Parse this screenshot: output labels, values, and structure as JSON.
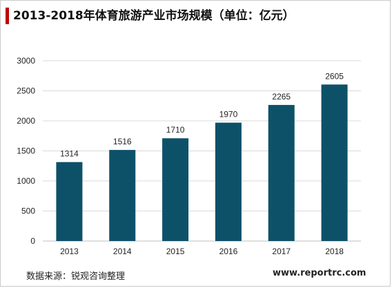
{
  "title": "2013-2018年体育旅游产业市场规模（单位：亿元）",
  "source": "数据来源：锐观咨询整理",
  "website": "www.reportrc.com",
  "colors": {
    "bar": "#0d5169",
    "accent": "#c00000",
    "grid": "#d9d9d9"
  },
  "chart_data": {
    "type": "bar",
    "title": "2013-2018年体育旅游产业市场规模（单位：亿元）",
    "categories": [
      "2013",
      "2014",
      "2015",
      "2016",
      "2017",
      "2018"
    ],
    "values": [
      1314,
      1516,
      1710,
      1970,
      2265,
      2605
    ],
    "data_labels": [
      "1314",
      "1516",
      "1710",
      "1970",
      "2265",
      "2605"
    ],
    "yticks": [
      0,
      500,
      1000,
      1500,
      2000,
      2500,
      3000
    ],
    "ytick_labels": [
      "0",
      "500",
      "1000",
      "1500",
      "2000",
      "2500",
      "3000"
    ],
    "ylim": [
      0,
      3000
    ],
    "xlabel": "",
    "ylabel": "",
    "grid": true,
    "legend": "none"
  }
}
